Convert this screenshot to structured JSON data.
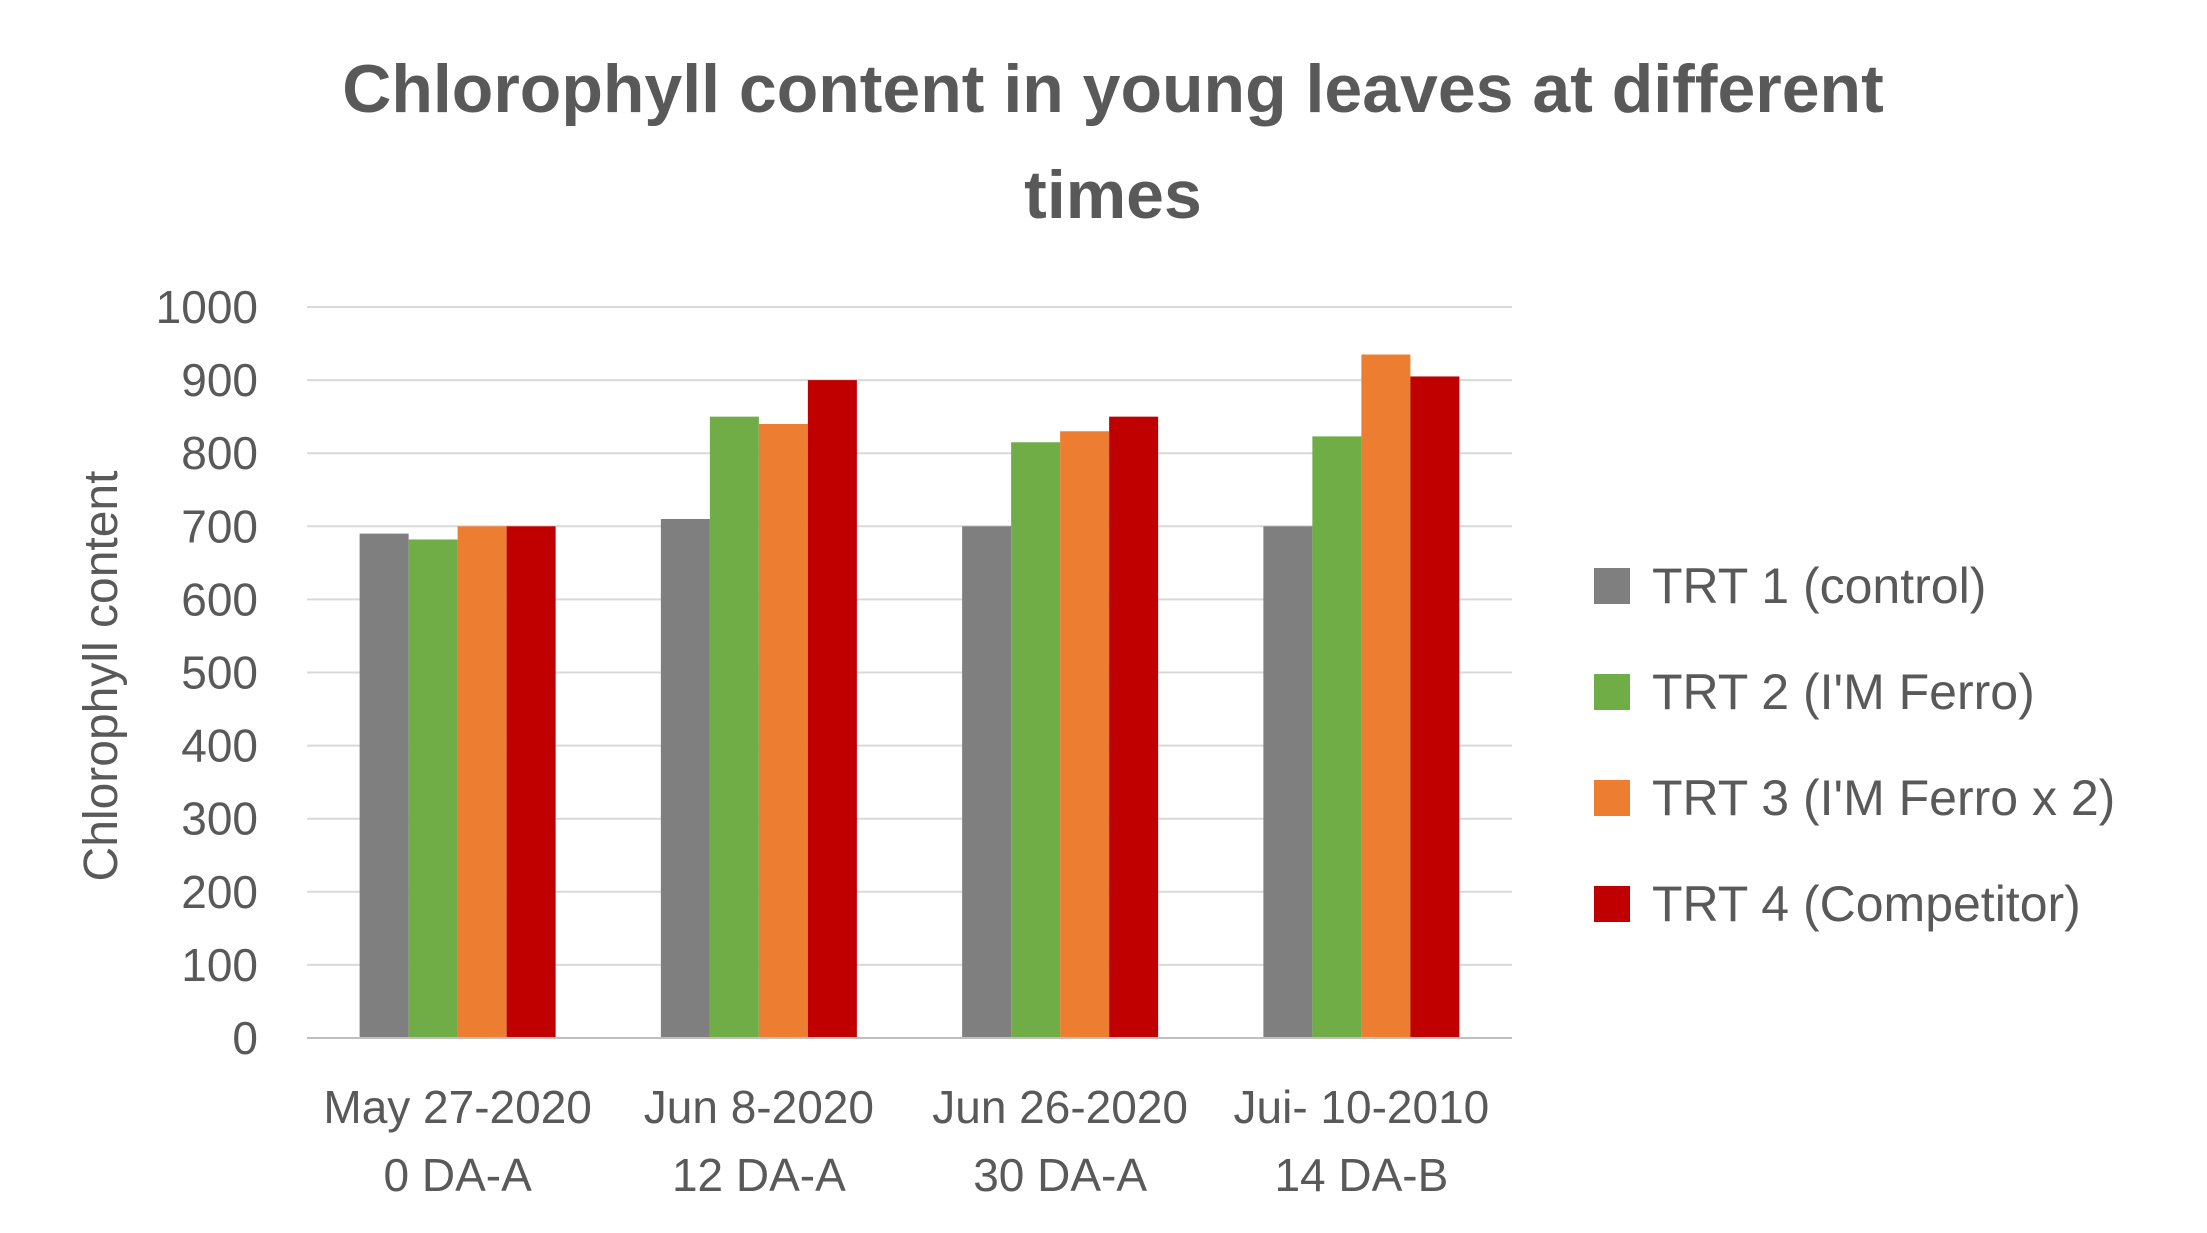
{
  "chart_data": {
    "type": "bar",
    "title_lines": [
      "Chlorophyll content in young leaves at different",
      "times"
    ],
    "xlabel": "",
    "ylabel": "Chlorophyll content",
    "ylim": [
      0,
      1000
    ],
    "yticks": [
      0,
      100,
      200,
      300,
      400,
      500,
      600,
      700,
      800,
      900,
      1000
    ],
    "grid": true,
    "legend_position": "right",
    "categories": [
      [
        "May 27-2020",
        "0 DA-A"
      ],
      [
        "Jun 8-2020",
        "12 DA-A"
      ],
      [
        "Jun 26-2020",
        "30 DA-A"
      ],
      [
        "Jui- 10-2010",
        "14 DA-B"
      ]
    ],
    "series": [
      {
        "name": "TRT 1 (control)",
        "color": "#7f7f7f",
        "values": [
          690,
          710,
          700,
          700
        ]
      },
      {
        "name": "TRT 2 (I'M Ferro)",
        "color": "#70ad47",
        "values": [
          682,
          850,
          815,
          823
        ]
      },
      {
        "name": "TRT 3 (I'M Ferro x 2)",
        "color": "#ed7d31",
        "values": [
          700,
          840,
          830,
          935
        ]
      },
      {
        "name": "TRT 4 (Competitor)",
        "color": "#c00000",
        "values": [
          700,
          900,
          850,
          905
        ]
      }
    ]
  }
}
